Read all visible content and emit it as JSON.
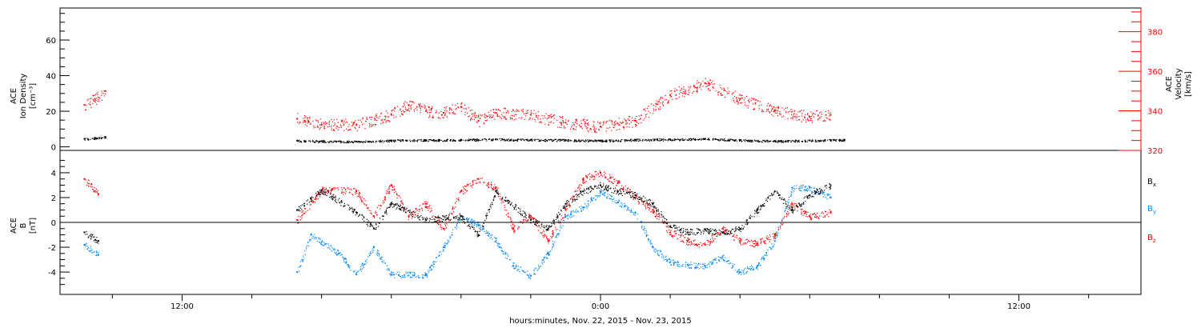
{
  "chart_data": [
    {
      "type": "scatter",
      "panel": "density-velocity",
      "ylabel_left_lines": [
        "ACE",
        "Ion Density",
        "[cm⁻³]"
      ],
      "ylabel_right_lines": [
        "ACE",
        "Velocity",
        "[km/s]"
      ],
      "ylim_left": [
        -2,
        78
      ],
      "ylim_right": [
        320,
        392
      ],
      "yticks_left": [
        0,
        20,
        40,
        60
      ],
      "yticks_right": [
        320,
        340,
        360,
        380
      ],
      "series": [
        {
          "axis": "left",
          "color": "#000000",
          "x": [
            -14.8,
            -14.5,
            -14.2,
            -8.7,
            -8,
            -7,
            -6,
            -5,
            -4,
            -3,
            -2,
            -1,
            0,
            1,
            2,
            3,
            4,
            5,
            6,
            7,
            6.6
          ],
          "y": [
            4.5,
            5.0,
            5.5,
            3.5,
            3.2,
            3.0,
            3.6,
            3.8,
            4.0,
            4.3,
            4.0,
            3.8,
            3.5,
            4.0,
            4.2,
            4.5,
            3.8,
            3.2,
            3.6,
            4.0,
            3.8
          ]
        },
        {
          "axis": "right",
          "color": "#ff0000",
          "x": [
            -14.8,
            -14.5,
            -14.2,
            -8.7,
            -8,
            -7,
            -6,
            -5.5,
            -5,
            -4.5,
            -4,
            -3.5,
            -3,
            -2,
            -1,
            0,
            1,
            2,
            3,
            4,
            5,
            6,
            6.6
          ],
          "y": [
            343,
            346,
            350,
            336,
            333,
            333,
            338,
            343,
            340,
            339,
            342,
            335,
            339,
            338,
            334,
            332,
            335,
            348,
            354,
            346,
            340,
            337,
            338
          ]
        }
      ]
    },
    {
      "type": "scatter",
      "panel": "magnetic-field",
      "ylabel_lines": [
        "ACE",
        "B",
        "[nT]"
      ],
      "ylim": [
        -5.8,
        5.8
      ],
      "yticks": [
        -4,
        -2,
        0,
        2,
        4
      ],
      "legend": [
        "Bx",
        "By",
        "Bz"
      ],
      "legend_placement": "right",
      "series": [
        {
          "name": "Bx",
          "color": "#000000",
          "x": [
            -14.8,
            -14.4,
            -8.7,
            -8,
            -7,
            -6.5,
            -6,
            -5,
            -4,
            -3.5,
            -3,
            -2,
            -1.5,
            -1,
            -0.5,
            0,
            0.5,
            1,
            1.5,
            2,
            2.5,
            3,
            3.5,
            4,
            4.5,
            5,
            5.5,
            6,
            6.6
          ],
          "y": [
            -0.8,
            -1.5,
            1.0,
            2.6,
            0.8,
            -0.5,
            1.5,
            0.2,
            0.5,
            -1.0,
            2.5,
            0.2,
            -0.5,
            1.5,
            2.5,
            3.0,
            2.5,
            2.2,
            1.5,
            -0.3,
            -0.8,
            -0.6,
            -0.8,
            -0.5,
            1.0,
            2.5,
            1.0,
            2.2,
            3.0
          ]
        },
        {
          "name": "By",
          "color": "#0088ff",
          "x": [
            -14.8,
            -14.4,
            -8.7,
            -8.3,
            -7.5,
            -7,
            -6.5,
            -6,
            -5,
            -4.5,
            -4,
            -3.5,
            -3,
            -2.5,
            -2,
            -1.5,
            -1,
            -0.5,
            0,
            0.5,
            1,
            1.5,
            2,
            2.5,
            3,
            3.5,
            4,
            4.5,
            5,
            5.5,
            6,
            6.6
          ],
          "y": [
            -1.8,
            -2.6,
            -4.0,
            -1.0,
            -2.5,
            -4.2,
            -2.0,
            -4.2,
            -4.2,
            -2.0,
            0.5,
            -0.2,
            -1.5,
            -3.5,
            -4.3,
            -2.5,
            0.5,
            1.2,
            2.5,
            1.6,
            0.8,
            -2.0,
            -3.2,
            -3.4,
            -3.5,
            -2.8,
            -4.0,
            -3.5,
            -1.5,
            2.8,
            2.8,
            2.0
          ]
        },
        {
          "name": "Bz",
          "color": "#ff0000",
          "x": [
            -14.8,
            -14.4,
            -8.7,
            -8,
            -7,
            -6.5,
            -6,
            -5.5,
            -5,
            -4.5,
            -4,
            -3.5,
            -3,
            -2.5,
            -2,
            -1.5,
            -1,
            -0.5,
            0,
            0.5,
            1,
            1.5,
            2,
            2.5,
            3,
            3.5,
            4,
            4.5,
            5,
            5.5,
            6,
            6.6
          ],
          "y": [
            3.5,
            2.3,
            0.2,
            2.6,
            2.5,
            0.5,
            3.0,
            0.5,
            1.5,
            -0.5,
            2.5,
            3.5,
            2.8,
            -0.5,
            0.5,
            -1.5,
            1.0,
            3.5,
            4.0,
            3.2,
            2.0,
            1.0,
            -0.8,
            -1.5,
            -1.8,
            -0.5,
            -1.5,
            -1.7,
            -1.0,
            1.5,
            0.5,
            0.8
          ]
        }
      ]
    }
  ],
  "x_axis": {
    "title": "hours:minutes, Nov. 22, 2015 - Nov. 23, 2015",
    "range_hours": [
      -15.5,
      15.5
    ],
    "major_ticks": [
      {
        "hours": -12,
        "label": "12:00"
      },
      {
        "hours": 0,
        "label": "0:00"
      },
      {
        "hours": 12,
        "label": "12:00"
      }
    ],
    "minor_step_hours": 2
  },
  "legend_labels": {
    "bx": "B",
    "bx_sub": "x",
    "by": "B",
    "by_sub": "y",
    "bz": "B",
    "bz_sub": "z"
  },
  "colors": {
    "red": "#ff0000",
    "blue": "#0088ff",
    "black": "#000000"
  }
}
